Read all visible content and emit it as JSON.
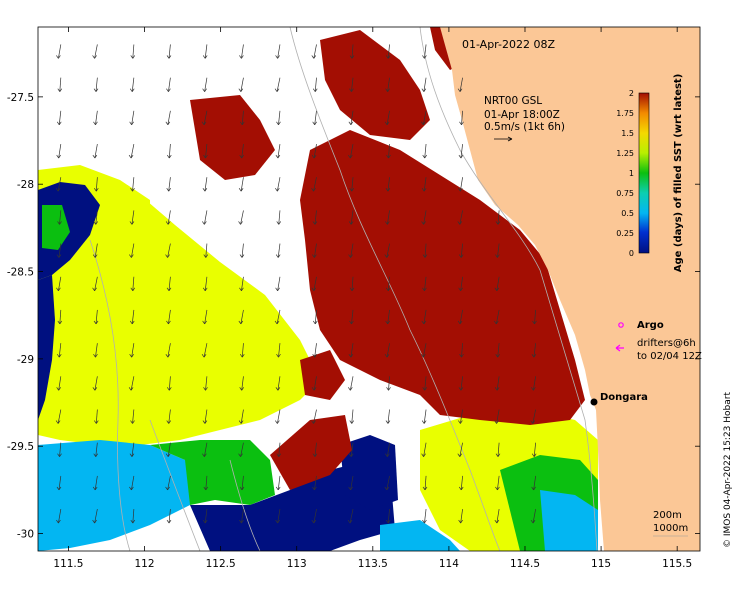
{
  "map": {
    "title": "01-Apr-2022 08Z",
    "x_ticks": [
      "111.5",
      "112",
      "112.5",
      "113",
      "113.5",
      "114",
      "114.5",
      "115",
      "115.5"
    ],
    "x_tick_values": [
      111.5,
      112,
      112.5,
      113,
      113.5,
      114,
      114.5,
      115,
      115.5
    ],
    "y_ticks": [
      "-27.5",
      "-28",
      "-28.5",
      "-29",
      "-29.5",
      "-30"
    ],
    "y_tick_values": [
      -27.5,
      -28,
      -28.5,
      -29,
      -29.5,
      -30
    ],
    "lon_range": [
      111.3,
      115.65
    ],
    "lat_range": [
      -27.1,
      -30.1
    ],
    "colors": {
      "land": "#fbc796",
      "ocean_missing": "#ffffff",
      "age_2": "#a30e03",
      "age_1_5": "#e9ff00",
      "age_1": "#0bbf10",
      "age_0_5": "#03b6f2",
      "age_0": "#001080"
    }
  },
  "currents": {
    "product": "NRT00 GSL",
    "time": "01-Apr 18:00Z",
    "scale": "0.5m/s (1kt 6h)"
  },
  "colorbar": {
    "label": "Age (days) of filled SST (wrt latest)",
    "ticks": [
      "0",
      "0.25",
      "0.5",
      "0.75",
      "1",
      "1.25",
      "1.5",
      "1.75",
      "2"
    ],
    "tick_values": [
      0,
      0.25,
      0.5,
      0.75,
      1,
      1.25,
      1.5,
      1.75,
      2
    ],
    "range": [
      0,
      2
    ]
  },
  "legend": {
    "argo_label": "Argo",
    "argo_color": "#ff00ff",
    "drifters_line1": "drifters@6h",
    "drifters_line2": "to 02/04 12Z",
    "drifter_color": "#ff00ff"
  },
  "places": [
    {
      "name": "Dongara",
      "lon": 114.93,
      "lat": -29.25
    }
  ],
  "isobaths": {
    "line1": "200m",
    "line2": "1000m"
  },
  "credit": "© IMOS 04-Apr-2022 15:23 Hobart"
}
